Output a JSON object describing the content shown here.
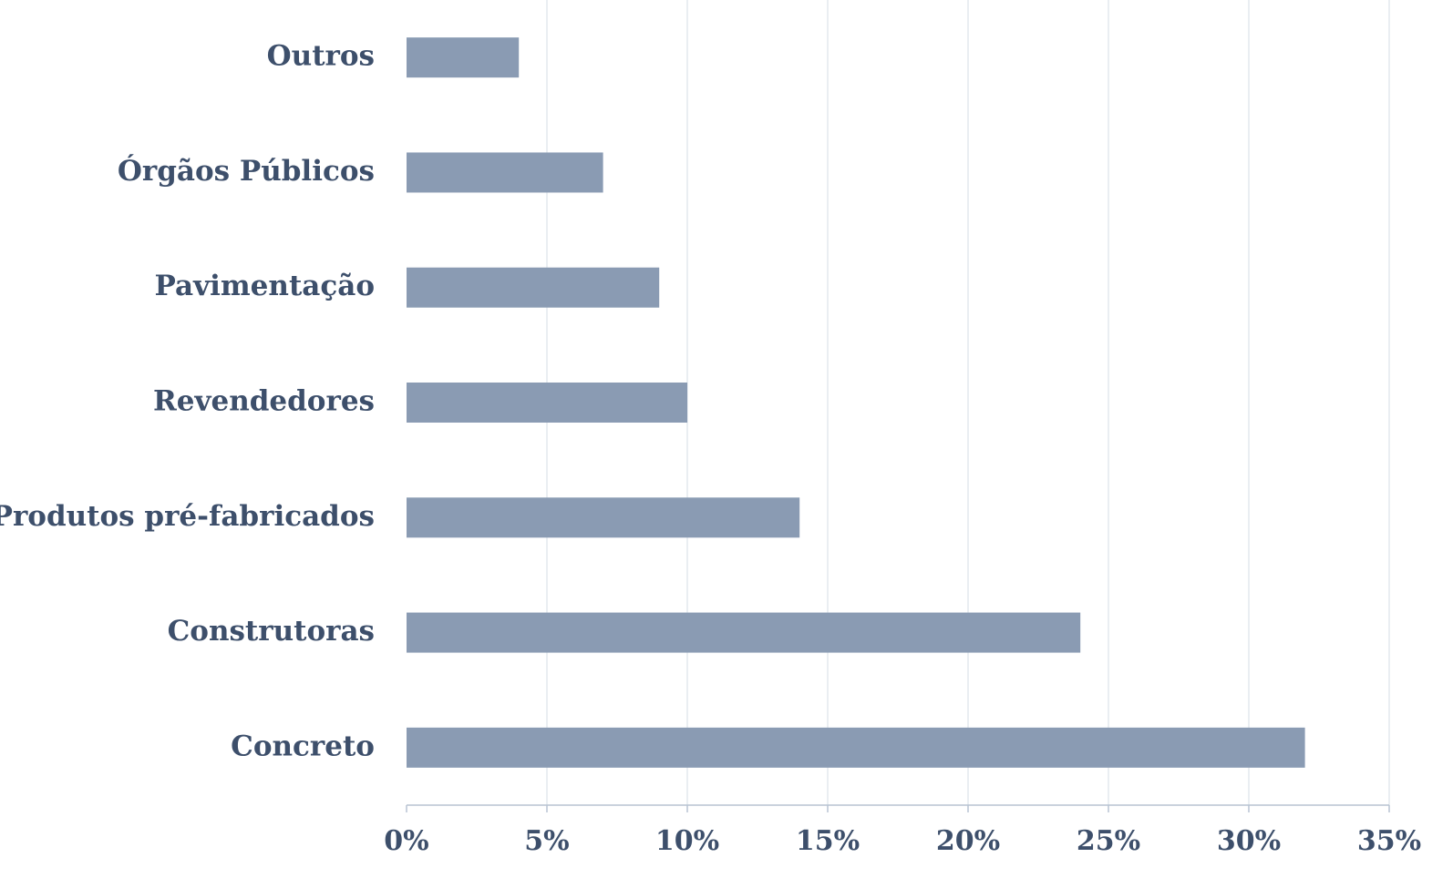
{
  "chart_data": {
    "type": "bar",
    "orientation": "horizontal",
    "categories": [
      "Outros",
      "Órgãos Públicos",
      "Pavimentação",
      "Revendedores",
      "Produtos pré-fabricados",
      "Construtoras",
      "Concreto"
    ],
    "values": [
      4,
      7,
      9,
      10,
      14,
      24,
      32
    ],
    "color": "#8a9bb3",
    "xlim": [
      0,
      35
    ],
    "xticks": [
      {
        "value": 0,
        "label": "0%"
      },
      {
        "value": 5,
        "label": "5%"
      },
      {
        "value": 10,
        "label": "10%"
      },
      {
        "value": 15,
        "label": "15%"
      },
      {
        "value": 20,
        "label": "20%"
      },
      {
        "value": 25,
        "label": "25%"
      },
      {
        "value": 30,
        "label": "30%"
      },
      {
        "value": 35,
        "label": "35%"
      }
    ],
    "grid": true
  }
}
